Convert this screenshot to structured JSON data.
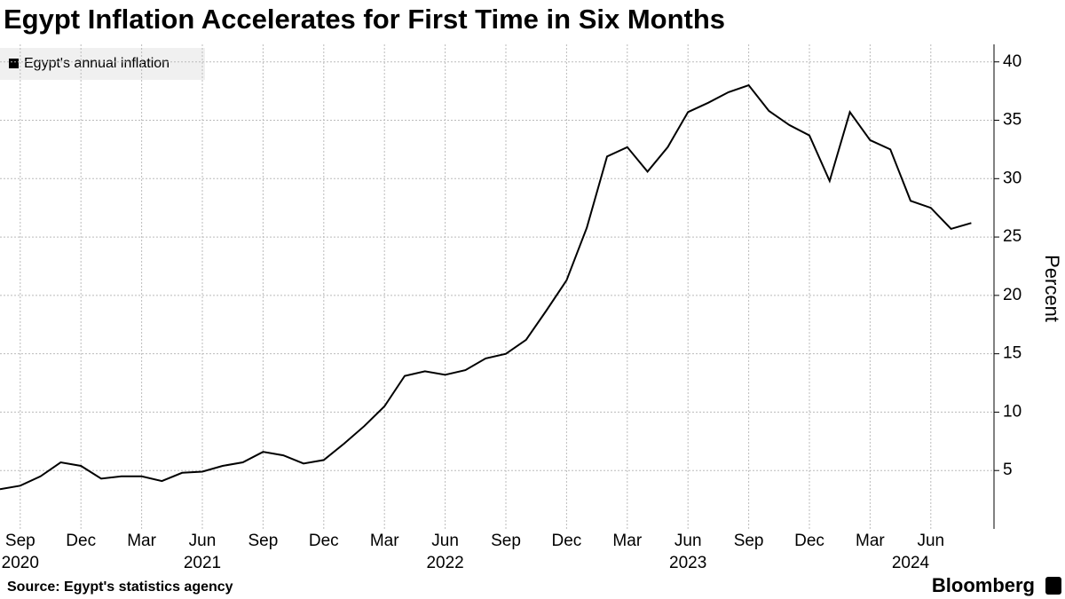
{
  "chart_data": {
    "type": "line",
    "title": "Egypt Inflation Accelerates for First Time in Six Months",
    "source": "Source: Egypt's statistics agency",
    "brand": "Bloomberg",
    "y_label": "Percent",
    "categories": [
      null,
      "Sep",
      null,
      null,
      "Dec",
      null,
      null,
      "Mar",
      null,
      null,
      "Jun",
      null,
      null,
      "Sep",
      null,
      null,
      "Dec",
      null,
      null,
      "Mar",
      null,
      null,
      "Jun",
      null,
      null,
      "Sep",
      null,
      null,
      "Dec",
      null,
      null,
      "Mar",
      null,
      null,
      "Jun",
      null,
      null,
      "Sep",
      null,
      null,
      "Dec",
      null,
      null,
      "Mar",
      null,
      null,
      "Jun",
      null,
      null
    ],
    "year_labels": [
      {
        "index": 1,
        "label": "2020"
      },
      {
        "index": 10,
        "label": "2021"
      },
      {
        "index": 22,
        "label": "2022"
      },
      {
        "index": 34,
        "label": "2023"
      },
      {
        "index": 45,
        "label": "2024"
      }
    ],
    "series": [
      {
        "name": "Egypt's annual inflation",
        "color": "#000000",
        "values": [
          3.4,
          3.7,
          4.5,
          5.7,
          5.4,
          4.3,
          4.5,
          4.5,
          4.1,
          4.8,
          4.9,
          5.4,
          5.7,
          6.6,
          6.3,
          5.6,
          5.9,
          7.3,
          8.8,
          10.5,
          13.1,
          13.5,
          13.2,
          13.6,
          14.6,
          15.0,
          16.2,
          18.7,
          21.3,
          25.8,
          31.9,
          32.7,
          30.6,
          32.7,
          35.7,
          36.5,
          37.4,
          38.0,
          35.8,
          34.6,
          33.7,
          29.8,
          35.7,
          33.3,
          32.5,
          28.1,
          27.5,
          25.7,
          26.2
        ]
      }
    ],
    "ylim": [
      0,
      41.5
    ],
    "yticks": [
      5,
      10,
      15,
      20,
      25,
      30,
      35,
      40
    ],
    "grid": true
  }
}
